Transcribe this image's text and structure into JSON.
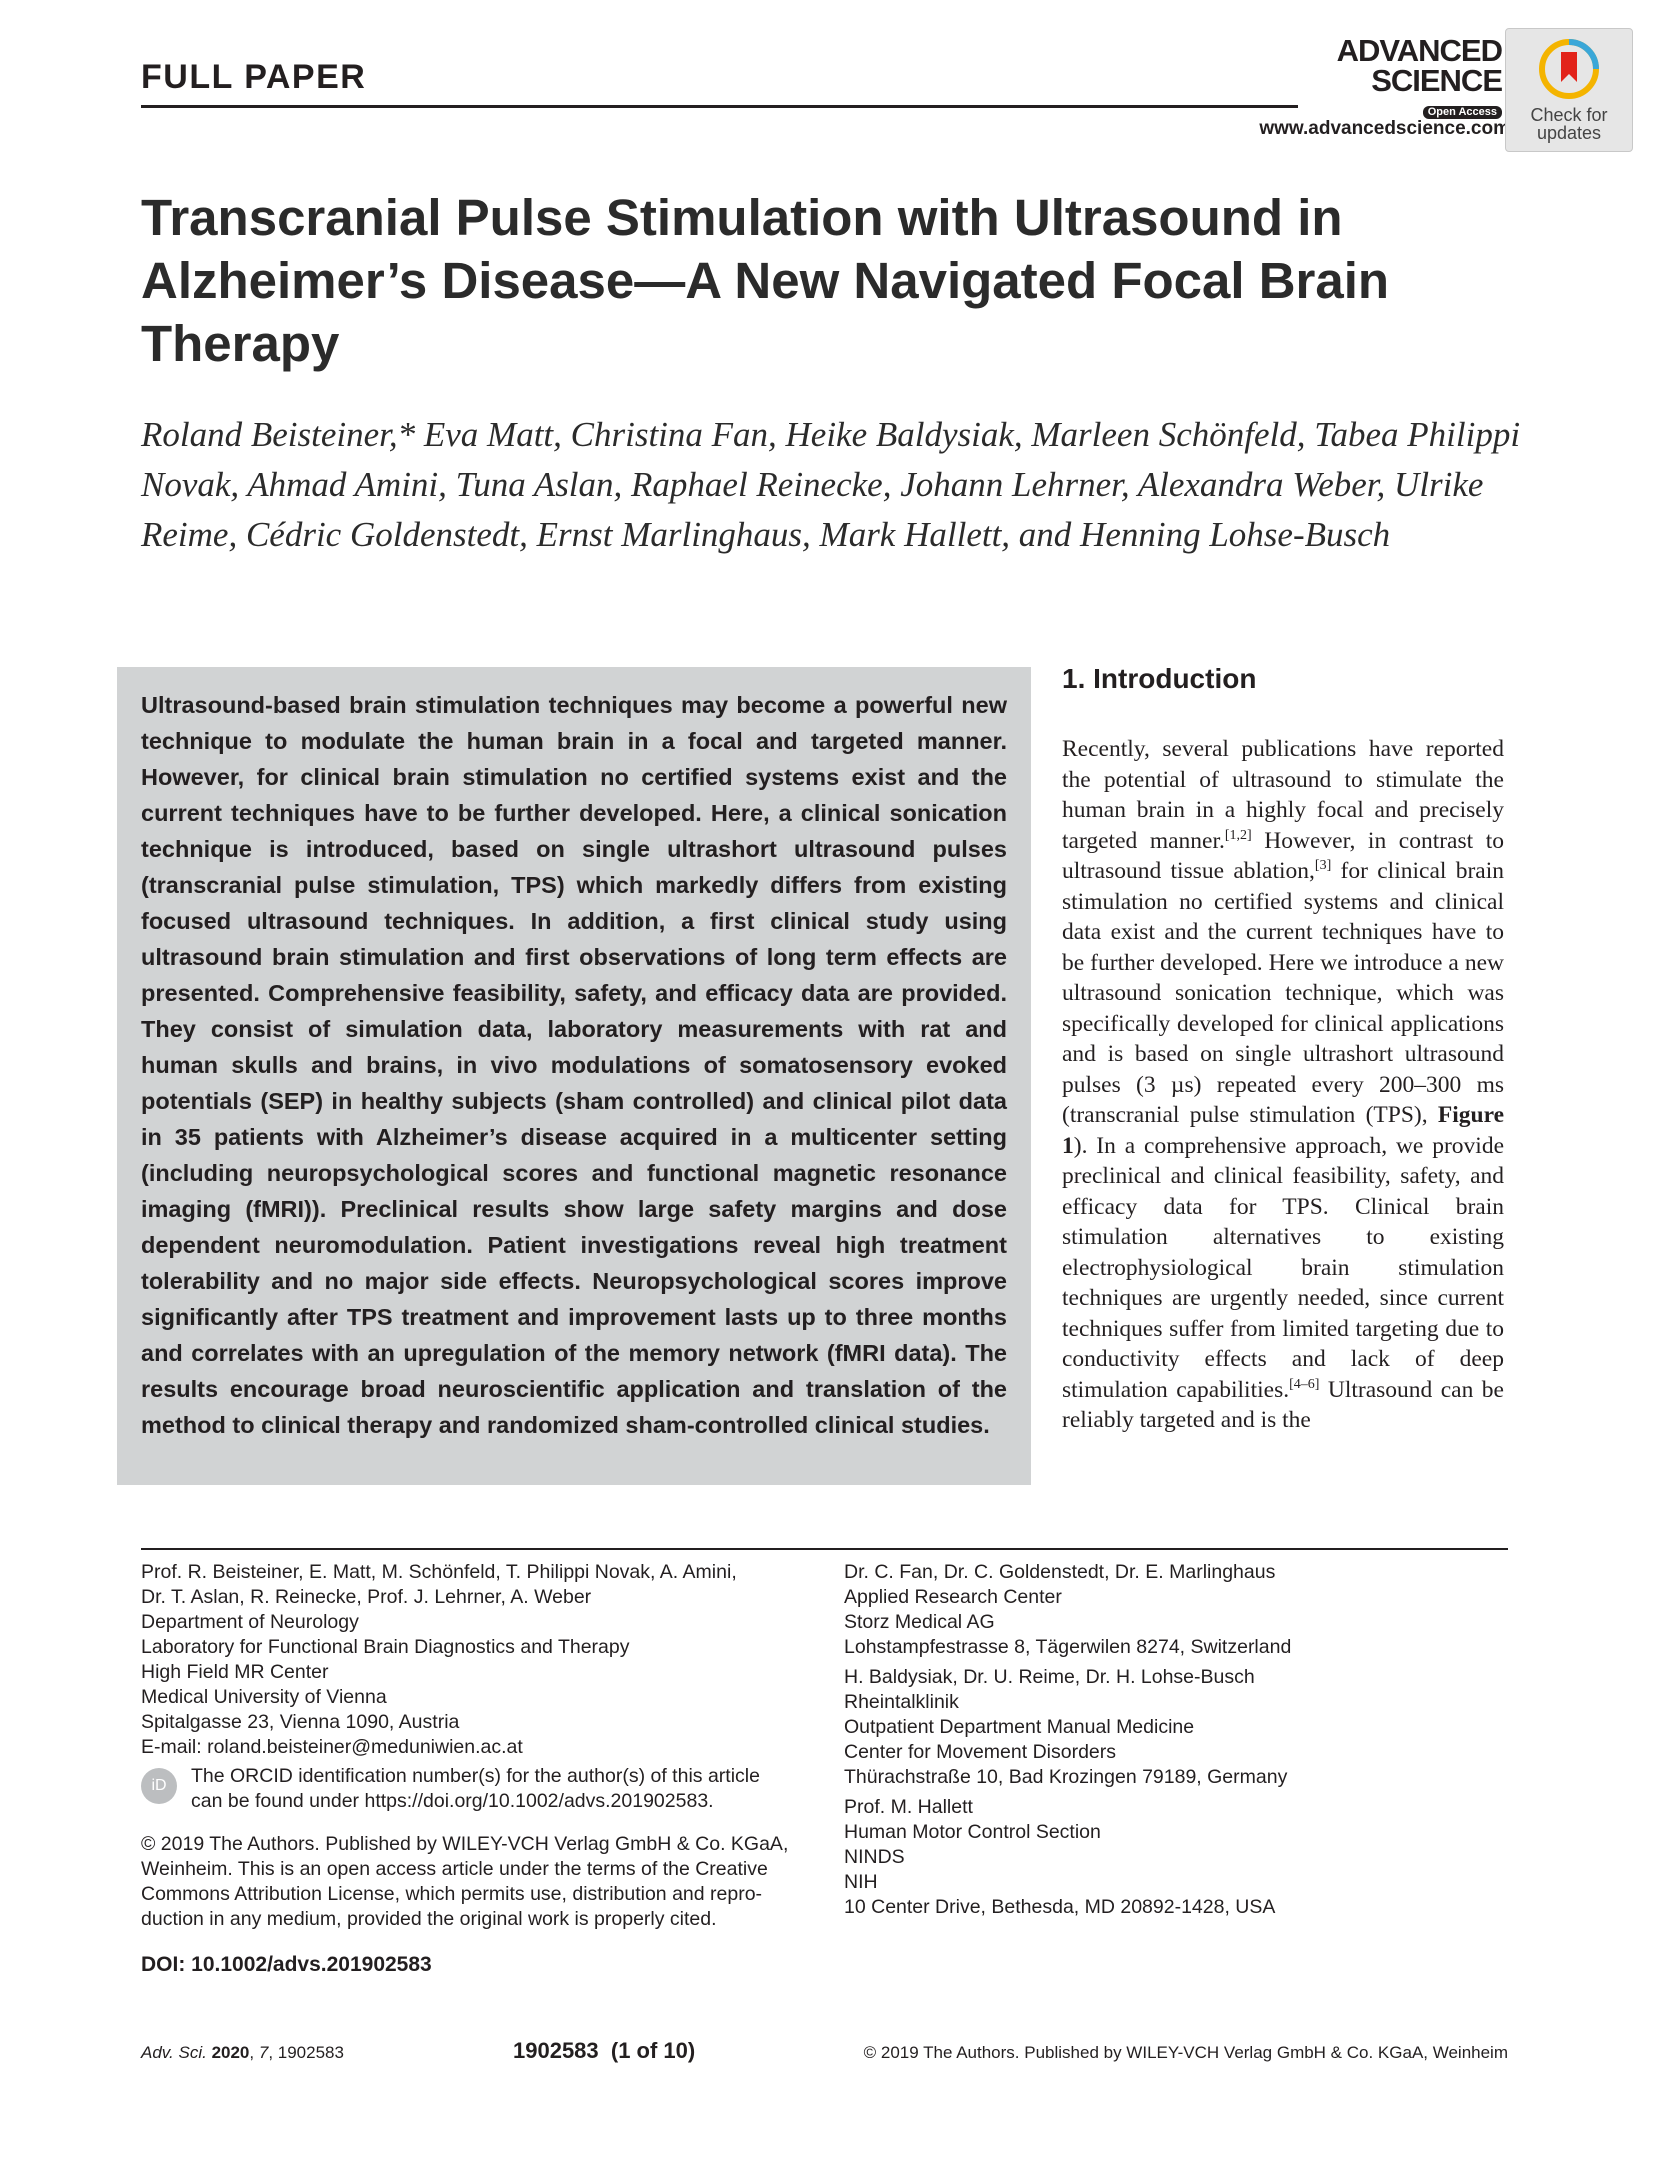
{
  "header": {
    "section_label": "FULL PAPER",
    "logo_line1": "ADVANCED",
    "logo_line2": "SCIENCE",
    "logo_badge": "Open Access",
    "url": "www.advancedscience.com",
    "check_badge_line1": "Check for",
    "check_badge_line2": "updates"
  },
  "title": "Transcranial Pulse Stimulation with Ultrasound in Alzheimer’s Disease—A New Navigated Focal Brain Therapy",
  "authors": "Roland Beisteiner,* Eva Matt, Christina Fan, Heike Baldysiak, Marleen Schönfeld, Tabea Philippi Novak, Ahmad Amini, Tuna Aslan, Raphael Reinecke, Johann Lehrner, Alexandra Weber, Ulrike Reime, Cédric Goldenstedt, Ernst Marlinghaus, Mark Hallett, and Henning Lohse-Busch",
  "abstract": "Ultrasound-based brain stimulation techniques may become a powerful new technique to modulate the human brain in a focal and targeted manner. However, for clinical brain stimulation no certified systems exist and the current techniques have to be further developed. Here, a clinical sonication technique is introduced, based on single ultrashort ultrasound pulses (transcranial pulse stimulation, TPS) which markedly differs from existing focused ultrasound techniques. In addition, a first clinical study using ultrasound brain stimulation and first observations of long term effects are presented. Comprehensive feasibility, safety, and efficacy data are provided. They consist of simulation data, laboratory measurements with rat and human skulls and brains, in vivo modulations of somatosensory evoked potentials (SEP) in healthy subjects (sham controlled) and clinical pilot data in 35 patients with Alzheimer’s disease acquired in a multicenter setting (including neuropsychological scores and functional magnetic resonance imaging (fMRI)). Preclinical results show large safety margins and dose dependent neuromodulation. Patient investigations reveal high treatment tolerability and no major side effects. Neuropsychological scores improve significantly after TPS treatment and improvement lasts up to three months and correlates with an upregulation of the memory network (fMRI data). The results encourage broad neuroscientific application and translation of the method to clinical therapy and randomized sham-controlled clinical studies.",
  "intro": {
    "heading": "1. Introduction",
    "p1": "Recently, several publications have reported the potential of ultrasound to stimulate the human brain in a highly focal and precisely targeted manner.",
    "ref1": "[1,2]",
    "p2": " However, in contrast to ultrasound tissue ablation,",
    "ref2": "[3]",
    "p3": " for clinical brain stimulation no certified systems and clinical data exist and the current techniques have to be further developed. Here we introduce a new ultrasound sonication technique, which was specifically developed for clinical applications and is based on single ultrashort ultrasound pulses (3 µs) repeated every 200–300 ms (transcranial pulse stimulation (TPS), ",
    "fig": "Figure 1",
    "p4": "). In a comprehensive approach, we provide preclinical and clinical feasibility, safety, and efficacy data for TPS. Clinical brain stimulation alternatives to existing electrophysiological brain stimulation techniques are urgently needed, since current techniques suffer from limited targeting due to conductivity effects and lack of deep stimulation capabilities.",
    "ref3": "[4–6]",
    "p5": " Ultrasound can be reliably targeted and is the"
  },
  "affiliations_left": [
    "Prof. R. Beisteiner, E. Matt, M. Schönfeld, T. Philippi Novak, A. Amini,",
    "Dr. T. Aslan, R. Reinecke, Prof. J. Lehrner, A. Weber",
    "Department of Neurology",
    "Laboratory for Functional Brain Diagnostics and Therapy",
    "High Field MR Center",
    "Medical University of Vienna",
    "Spitalgasse 23, Vienna 1090, Austria",
    "E-mail: roland.beisteiner@meduniwien.ac.at"
  ],
  "orcid": {
    "icon_text": "iD",
    "line1": "The ORCID identification number(s) for the author(s) of this article",
    "line2": "can be found under https://doi.org/10.1002/advs.201902583."
  },
  "copyright_lines": [
    "© 2019 The Authors. Published by WILEY-VCH Verlag GmbH & Co. KGaA,",
    "Weinheim. This is an open access article under the terms of the Creative",
    "Commons Attribution License, which permits use, distribution and repro-",
    "duction in any medium, provided the original work is properly cited."
  ],
  "doi": "DOI: 10.1002/advs.201902583",
  "affiliations_right": {
    "group1": [
      "Dr. C. Fan, Dr. C. Goldenstedt, Dr. E. Marlinghaus",
      "Applied Research Center",
      "Storz Medical AG",
      "Lohstampfestrasse 8, Tägerwilen 8274, Switzerland"
    ],
    "group2": [
      "H. Baldysiak, Dr. U. Reime, Dr. H. Lohse-Busch",
      "Rheintalklinik",
      "Outpatient Department Manual Medicine",
      "Center for Movement Disorders",
      "Thürachstraße 10, Bad Krozingen 79189, Germany"
    ],
    "group3": [
      "Prof. M. Hallett",
      "Human Motor Control Section",
      "NINDS",
      "NIH",
      "10 Center Drive, Bethesda, MD 20892-1428, USA"
    ]
  },
  "footer": {
    "journal": "Adv. Sci.",
    "year": "2020",
    "volume": "7",
    "article": "1902583",
    "page": "1902583  (1 of 10)",
    "publisher": "© 2019 The Authors. Published by WILEY-VCH Verlag GmbH & Co. KGaA, Weinheim"
  }
}
